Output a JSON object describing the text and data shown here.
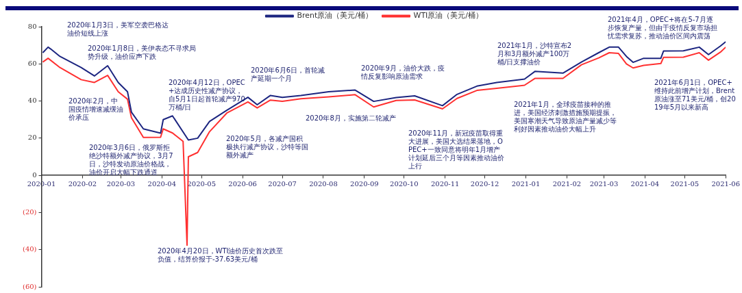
{
  "chart_data": {
    "type": "line",
    "legend": "top",
    "marker": "none",
    "line_style": "solid",
    "grid": false,
    "xlim": [
      "2020-01",
      "2021-06"
    ],
    "xticks": [
      "2020-01",
      "2020-02",
      "2020-03",
      "2020-04",
      "2020-05",
      "2020-06",
      "2020-07",
      "2020-08",
      "2020-09",
      "2020-10",
      "2020-11",
      "2020-12",
      "2021-01",
      "2021-02",
      "2021-03",
      "2021-04",
      "2021-05",
      "2021-06"
    ],
    "ylim": [
      -60,
      80
    ],
    "yticks": [
      {
        "value": -60,
        "label": "(60)"
      },
      {
        "value": -40,
        "label": "(40)"
      },
      {
        "value": -20,
        "label": "(20)"
      },
      0,
      20,
      40,
      60,
      80
    ],
    "series": [
      {
        "name": "Brent原油（美元/桶）",
        "color": "#1c2580",
        "x": [
          "2020-01-02",
          "2020-01-06",
          "2020-01-08",
          "2020-01-15",
          "2020-01-31",
          "2020-02-10",
          "2020-02-20",
          "2020-02-28",
          "2020-03-06",
          "2020-03-09",
          "2020-03-18",
          "2020-03-31",
          "2020-04-02",
          "2020-04-09",
          "2020-04-21",
          "2020-04-28",
          "2020-05-07",
          "2020-05-20",
          "2020-06-05",
          "2020-06-12",
          "2020-06-22",
          "2020-07-01",
          "2020-07-15",
          "2020-08-05",
          "2020-08-25",
          "2020-09-08",
          "2020-09-25",
          "2020-10-09",
          "2020-10-30",
          "2020-11-10",
          "2020-11-25",
          "2020-12-10",
          "2020-12-31",
          "2021-01-08",
          "2021-01-29",
          "2021-02-12",
          "2021-02-25",
          "2021-03-05",
          "2021-03-12",
          "2021-03-18",
          "2021-03-23",
          "2021-03-31",
          "2021-04-13",
          "2021-04-15",
          "2021-04-30",
          "2021-05-12",
          "2021-05-19",
          "2021-05-28",
          "2021-06-01"
        ],
        "values": [
          66,
          69,
          68,
          64,
          58,
          53.5,
          59,
          50,
          45,
          34,
          25,
          22.7,
          30,
          32,
          19,
          20,
          29,
          35,
          42,
          38,
          43,
          42,
          43,
          45,
          45.9,
          39.8,
          41.9,
          42.8,
          37.5,
          43.6,
          48,
          50,
          51.8,
          56,
          55,
          61,
          66,
          69,
          69,
          64,
          60.8,
          63,
          63,
          66.9,
          67,
          69,
          65,
          69.6,
          71.9
        ]
      },
      {
        "name": "WTI原油（美元/桶）",
        "color": "#ff3030",
        "x": [
          "2020-01-02",
          "2020-01-06",
          "2020-01-15",
          "2020-01-31",
          "2020-02-10",
          "2020-02-20",
          "2020-02-28",
          "2020-03-06",
          "2020-03-09",
          "2020-03-18",
          "2020-03-31",
          "2020-04-02",
          "2020-04-09",
          "2020-04-17",
          "2020-04-20",
          "2020-04-21",
          "2020-04-28",
          "2020-05-07",
          "2020-05-20",
          "2020-06-05",
          "2020-06-12",
          "2020-06-22",
          "2020-07-01",
          "2020-07-15",
          "2020-08-05",
          "2020-08-25",
          "2020-09-08",
          "2020-09-25",
          "2020-10-09",
          "2020-10-30",
          "2020-11-10",
          "2020-11-25",
          "2020-12-10",
          "2020-12-31",
          "2021-01-08",
          "2021-01-29",
          "2021-02-12",
          "2021-02-25",
          "2021-03-05",
          "2021-03-12",
          "2021-03-18",
          "2021-03-23",
          "2021-03-31",
          "2021-04-13",
          "2021-04-15",
          "2021-04-30",
          "2021-05-12",
          "2021-05-19",
          "2021-05-28",
          "2021-06-01"
        ],
        "values": [
          61,
          63,
          58,
          51.5,
          50,
          53.8,
          45,
          41,
          31,
          20.4,
          20.5,
          25,
          22.8,
          18.3,
          -37.6,
          10,
          12.3,
          23.5,
          33.5,
          39.5,
          36.3,
          40.5,
          39.8,
          41.2,
          42.2,
          43.4,
          36.8,
          40.3,
          40.6,
          35.8,
          41.4,
          45.7,
          46.8,
          48.5,
          52.2,
          52.2,
          59.5,
          63.2,
          66,
          65.6,
          60,
          57.8,
          59.2,
          60.2,
          63.5,
          63.6,
          66,
          62,
          66.3,
          69
        ]
      }
    ],
    "annotations": [
      "2020年1月3日，美军空袭巴格达油价短线上涨",
      "2020年1月8日，美伊表态不寻求局势升级，油价应声下跌",
      "2020年2月，中国疫情增速减缓油价承压",
      "2020年3月6日，俄罗斯拒绝沙特额外减产协议，3月7日，沙特发动原油价格战，油价开启大幅下跌通道",
      "2020年4月12日，OPEC+达成历史性减产协议，自5月1日起首轮减产970万桶/日",
      "2020年5月，各减产国积极执行减产协议，沙特等国额外减产",
      "2020年6月6日，首轮减产延期一个月",
      "2020年8月，实施第二轮减产",
      "2020年9月，油价大跌，疫情反复影响原油需求",
      "2020年11月，新冠疫苗取得重大进展，美国大选结果落地，OPEC+一致同意将明年1月增产计划延后三个月等因素推动油价上行",
      "2021年1月，沙特宣布2月和3月额外减产100万桶/日支撑油价",
      "2021年1月，全球疫苗接种的推进，美国经济刺激措施预期提振，美国寒潮天气导致原油产量减少等利好因素推动油价大幅上升",
      "2021年4月，OPEC+将在5-7月逐步恢复产量，但由于疫情反复市场担忧需求复苏，推动油价区间内震荡",
      "2021年6月1日，OPEC+维持此前增产计划，Brent原油涨至71美元/桶，创2019年5月以来新高",
      "2020年4月20日，WTI油价历史首次跌至负值，结算价报于-37.63美元/桶"
    ]
  }
}
